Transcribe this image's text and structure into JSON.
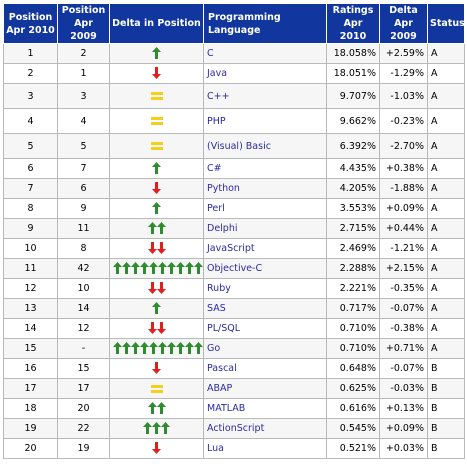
{
  "table": {
    "headers": {
      "pos2010": "Position Apr 2010",
      "pos2009": "Position Apr 2009",
      "delta": "Delta in Position",
      "language": "Programming Language",
      "ratings": "Ratings Apr 2010",
      "ratingDelta": "Delta Apr 2009",
      "status": "Status"
    },
    "rows": [
      {
        "pos2010": "1",
        "pos2009": "2",
        "trend": "up",
        "count": 1,
        "language": "C",
        "ratings": "18.058%",
        "ratingDelta": "+2.59%",
        "status": "A"
      },
      {
        "pos2010": "2",
        "pos2009": "1",
        "trend": "down",
        "count": 1,
        "language": "Java",
        "ratings": "18.051%",
        "ratingDelta": "-1.29%",
        "status": "A"
      },
      {
        "pos2010": "3",
        "pos2009": "3",
        "trend": "same",
        "count": 1,
        "language": "C++",
        "ratings": "9.707%",
        "ratingDelta": "-1.03%",
        "status": "A"
      },
      {
        "pos2010": "4",
        "pos2009": "4",
        "trend": "same",
        "count": 1,
        "language": "PHP",
        "ratings": "9.662%",
        "ratingDelta": "-0.23%",
        "status": "A"
      },
      {
        "pos2010": "5",
        "pos2009": "5",
        "trend": "same",
        "count": 1,
        "language": "(Visual) Basic",
        "ratings": "6.392%",
        "ratingDelta": "-2.70%",
        "status": "A"
      },
      {
        "pos2010": "6",
        "pos2009": "7",
        "trend": "up",
        "count": 1,
        "language": "C#",
        "ratings": "4.435%",
        "ratingDelta": "+0.38%",
        "status": "A"
      },
      {
        "pos2010": "7",
        "pos2009": "6",
        "trend": "down",
        "count": 1,
        "language": "Python",
        "ratings": "4.205%",
        "ratingDelta": "-1.88%",
        "status": "A"
      },
      {
        "pos2010": "8",
        "pos2009": "9",
        "trend": "up",
        "count": 1,
        "language": "Perl",
        "ratings": "3.553%",
        "ratingDelta": "+0.09%",
        "status": "A"
      },
      {
        "pos2010": "9",
        "pos2009": "11",
        "trend": "up",
        "count": 2,
        "language": "Delphi",
        "ratings": "2.715%",
        "ratingDelta": "+0.44%",
        "status": "A"
      },
      {
        "pos2010": "10",
        "pos2009": "8",
        "trend": "down",
        "count": 2,
        "language": "JavaScript",
        "ratings": "2.469%",
        "ratingDelta": "-1.21%",
        "status": "A"
      },
      {
        "pos2010": "11",
        "pos2009": "42",
        "trend": "up",
        "count": 10,
        "language": "Objective-C",
        "ratings": "2.288%",
        "ratingDelta": "+2.15%",
        "status": "A"
      },
      {
        "pos2010": "12",
        "pos2009": "10",
        "trend": "down",
        "count": 2,
        "language": "Ruby",
        "ratings": "2.221%",
        "ratingDelta": "-0.35%",
        "status": "A"
      },
      {
        "pos2010": "13",
        "pos2009": "14",
        "trend": "up",
        "count": 1,
        "language": "SAS",
        "ratings": "0.717%",
        "ratingDelta": "-0.07%",
        "status": "A"
      },
      {
        "pos2010": "14",
        "pos2009": "12",
        "trend": "down",
        "count": 2,
        "language": "PL/SQL",
        "ratings": "0.710%",
        "ratingDelta": "-0.38%",
        "status": "A"
      },
      {
        "pos2010": "15",
        "pos2009": "-",
        "trend": "up",
        "count": 10,
        "language": "Go",
        "ratings": "0.710%",
        "ratingDelta": "+0.71%",
        "status": "A"
      },
      {
        "pos2010": "16",
        "pos2009": "15",
        "trend": "down",
        "count": 1,
        "language": "Pascal",
        "ratings": "0.648%",
        "ratingDelta": "-0.07%",
        "status": "B"
      },
      {
        "pos2010": "17",
        "pos2009": "17",
        "trend": "same",
        "count": 1,
        "language": "ABAP",
        "ratings": "0.625%",
        "ratingDelta": "-0.03%",
        "status": "B"
      },
      {
        "pos2010": "18",
        "pos2009": "20",
        "trend": "up",
        "count": 2,
        "language": "MATLAB",
        "ratings": "0.616%",
        "ratingDelta": "+0.13%",
        "status": "B"
      },
      {
        "pos2010": "19",
        "pos2009": "22",
        "trend": "up",
        "count": 3,
        "language": "ActionScript",
        "ratings": "0.545%",
        "ratingDelta": "+0.09%",
        "status": "B"
      },
      {
        "pos2010": "20",
        "pos2009": "19",
        "trend": "down",
        "count": 1,
        "language": "Lua",
        "ratings": "0.521%",
        "ratingDelta": "+0.03%",
        "status": "B"
      }
    ]
  },
  "colors": {
    "header_bg": "#11369e",
    "up_arrow": "#2e8b2e",
    "down_arrow": "#e02020",
    "same": "#f2d01c",
    "link": "#2a2aa6"
  }
}
